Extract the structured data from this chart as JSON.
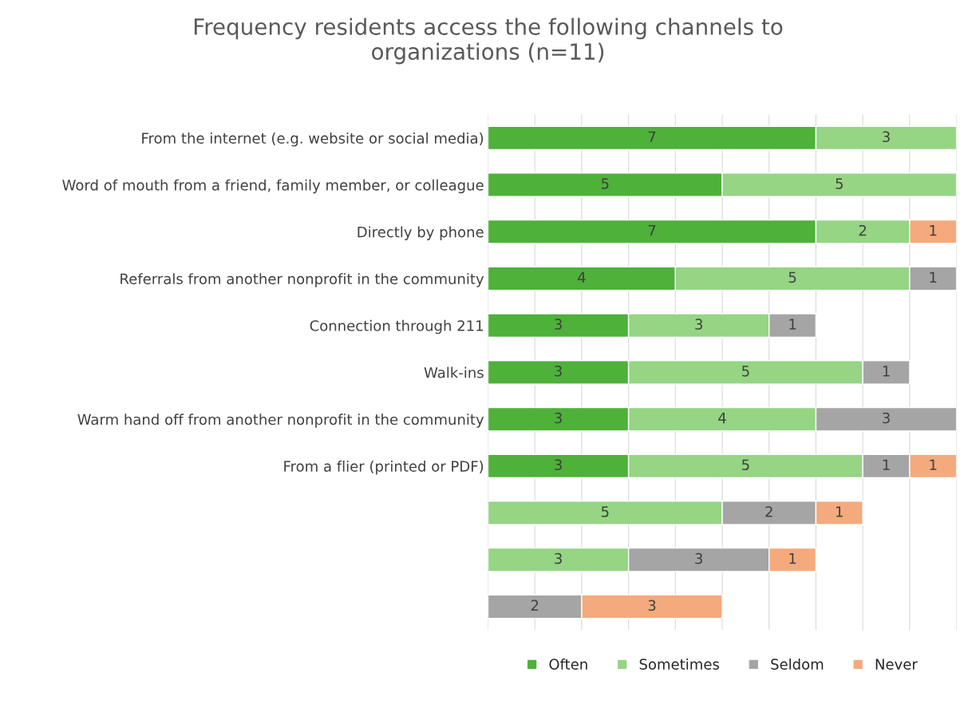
{
  "chart_data": {
    "type": "bar",
    "orientation": "horizontal",
    "stacked": true,
    "data_labels": true,
    "title": "Frequency residents access the following channels to organizations (n=11)",
    "categories": [
      "From the internet (e.g. website or social media)",
      "Word of mouth from a friend, family member, or colleague",
      "Directly by phone",
      "Referrals from another nonprofit in the community",
      "Connection through 211",
      "Walk-ins",
      "Warm hand off from another nonprofit in the community",
      "From a flier (printed or PDF)",
      null,
      null,
      null
    ],
    "series": [
      {
        "name": "Often",
        "color": "#4eb13a",
        "values": [
          7,
          5,
          7,
          4,
          3,
          3,
          3,
          3,
          null,
          null,
          null
        ]
      },
      {
        "name": "Sometimes",
        "color": "#95d584",
        "values": [
          3,
          5,
          2,
          5,
          3,
          5,
          4,
          5,
          5,
          3,
          null
        ]
      },
      {
        "name": "Seldom",
        "color": "#a5a5a5",
        "values": [
          null,
          null,
          null,
          1,
          1,
          1,
          3,
          1,
          2,
          3,
          2
        ]
      },
      {
        "name": "Never",
        "color": "#f4aa7c",
        "values": [
          null,
          null,
          1,
          null,
          null,
          null,
          null,
          1,
          1,
          1,
          3
        ]
      }
    ],
    "grid": "x",
    "legend": "bottom"
  }
}
